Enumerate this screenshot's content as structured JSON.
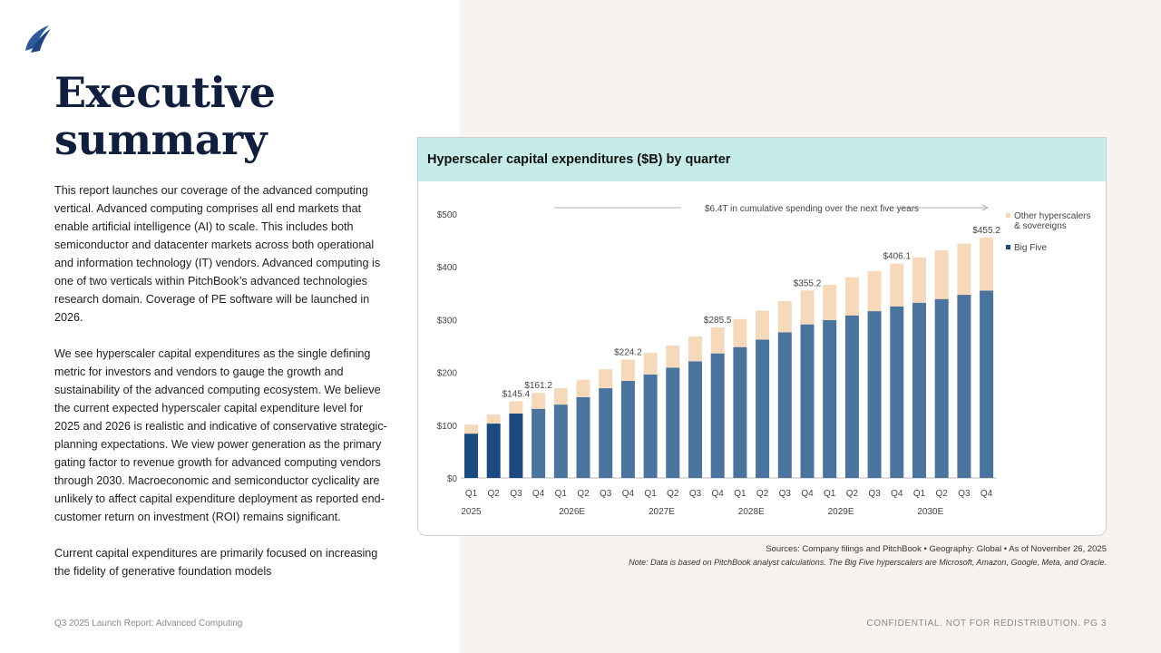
{
  "page": {
    "title_line1": "Executive",
    "title_line2": "summary",
    "paragraphs": [
      "This report launches our coverage of the advanced computing vertical. Advanced computing comprises all end markets that enable artificial intelligence (AI) to scale. This includes both semiconductor and datacenter markets across both operational and information technology (IT) vendors. Advanced computing is one of two verticals within PitchBook’s advanced technologies research domain. Coverage of PE software will be launched in 2026.",
      "We see hyperscaler capital expenditures as the single defining metric for investors and vendors to gauge the growth and sustainability of the advanced computing ecosystem. We believe the current expected hyperscaler capital expenditure level for 2025 and 2026 is realistic and indicative of conservative strategic-planning expectations. We view power generation as the primary gating factor to revenue growth for advanced computing vendors through 2030. Macroeconomic and semiconductor cyclicality are unlikely to affect capital expenditure deployment as reported end-customer return on investment (ROI) remains significant.",
      "Current capital expenditures are primarily focused on increasing the fidelity of generative foundation models"
    ],
    "footer_left": "Q3 2025 Launch Report: Advanced Computing",
    "footer_right": "CONFIDENTIAL. NOT FOR REDISTRIBUTION.  PG 3",
    "sources": "Sources: Company filings and PitchBook  •  Geography: Global  •  As of November 26, 2025",
    "note": "Note: Data is based on PitchBook analyst calculations. The Big Five hyperscalers are Microsoft, Amazon, Google, Meta, and Oracle.",
    "logo_icon": "sail-logo-icon"
  },
  "colors": {
    "title": "#0f1f3d",
    "big_five_actual": "#1c4a80",
    "big_five_estimate": "#4a739e",
    "other": "#f6d9ba",
    "header_bg": "#c5ece9",
    "right_bg": "#f7f4ef"
  },
  "chart_data": {
    "type": "bar",
    "stacked": true,
    "title": "Hyperscaler capital expenditures ($B) by quarter",
    "xlabel": "",
    "ylabel": "",
    "ylim": [
      0,
      500
    ],
    "yticks": [
      0,
      100,
      200,
      300,
      400,
      500
    ],
    "ytick_labels": [
      "$0",
      "$100",
      "$200",
      "$300",
      "$400",
      "$500"
    ],
    "grid": false,
    "legend_position": "top-right",
    "annotation": "$6.4T in cumulative spending over the next five years",
    "categories": [
      "Q1",
      "Q2",
      "Q3",
      "Q4",
      "Q1",
      "Q2",
      "Q3",
      "Q4",
      "Q1",
      "Q2",
      "Q3",
      "Q4",
      "Q1",
      "Q2",
      "Q3",
      "Q4",
      "Q1",
      "Q2",
      "Q3",
      "Q4",
      "Q1",
      "Q2",
      "Q3",
      "Q4"
    ],
    "year_labels": [
      {
        "label": "2025",
        "index": 0
      },
      {
        "label": "2026E",
        "index": 4.5
      },
      {
        "label": "2027E",
        "index": 8.5
      },
      {
        "label": "2028E",
        "index": 12.5
      },
      {
        "label": "2029E",
        "index": 16.5
      },
      {
        "label": "2030E",
        "index": 20.5
      }
    ],
    "actual_count": 3,
    "series": [
      {
        "name": "Big Five",
        "values": [
          84,
          103,
          122,
          131,
          139,
          153,
          170,
          184,
          196,
          209,
          221,
          236,
          248,
          262,
          276,
          291,
          299,
          308,
          316,
          325,
          332,
          339,
          347,
          355
        ]
      },
      {
        "name": "Other hyperscalers & sovereigns",
        "values": [
          17,
          17,
          23.4,
          30.2,
          31,
          33,
          36,
          40.2,
          41,
          42,
          47,
          49.5,
          53,
          55,
          59,
          64.2,
          67,
          72,
          76,
          81.1,
          86,
          92,
          97,
          100.2
        ]
      }
    ],
    "totals": [
      101,
      120,
      145.4,
      161.2,
      170,
      186,
      206,
      224.2,
      237,
      251,
      268,
      285.5,
      301,
      317,
      335,
      355.2,
      366,
      380,
      392,
      406.1,
      418,
      431,
      444,
      455.2
    ],
    "data_labels": [
      {
        "index": 2,
        "label": "$145.4"
      },
      {
        "index": 3,
        "label": "$161.2"
      },
      {
        "index": 7,
        "label": "$224.2"
      },
      {
        "index": 11,
        "label": "$285.5"
      },
      {
        "index": 15,
        "label": "$355.2"
      },
      {
        "index": 19,
        "label": "$406.1"
      },
      {
        "index": 23,
        "label": "$455.2"
      }
    ],
    "legend": [
      {
        "name": "Other hyperscalers",
        "name_line2": "& sovereigns",
        "color": "#f6d9ba"
      },
      {
        "name": "Big Five",
        "name_line2": "",
        "color": "#1c4a80"
      }
    ]
  }
}
